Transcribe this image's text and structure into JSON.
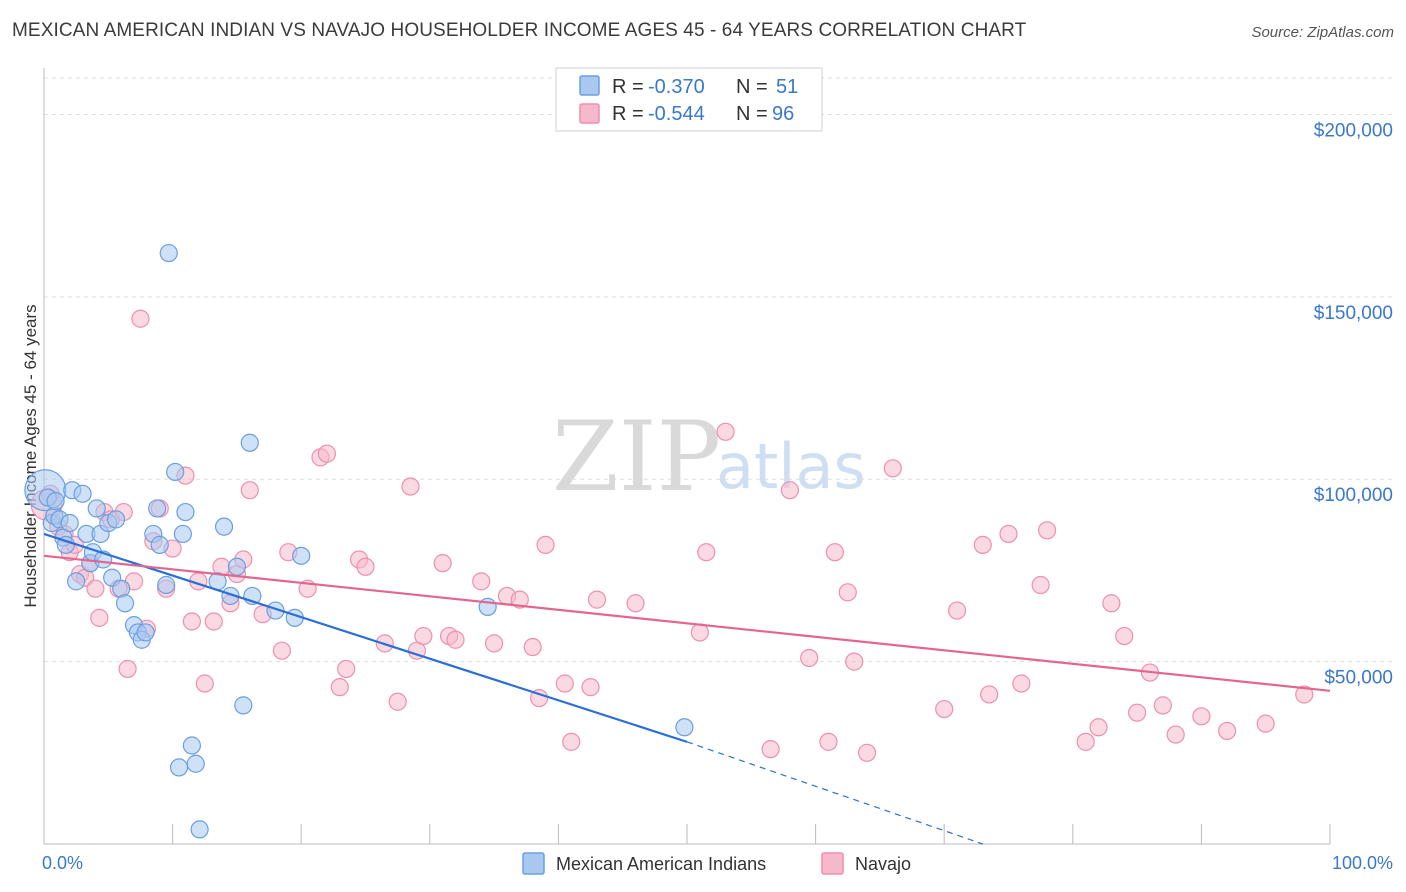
{
  "title": "MEXICAN AMERICAN INDIAN VS NAVAJO HOUSEHOLDER INCOME AGES 45 - 64 YEARS CORRELATION CHART",
  "source": "Source: ZipAtlas.com",
  "watermark": {
    "zip": "ZIP",
    "atlas": "atlas"
  },
  "colors": {
    "blue_fill": "#a8c8f0",
    "blue_stroke": "#6a9fe0",
    "blue_line": "#2b6fd6",
    "pink_fill": "#f6b9cc",
    "pink_stroke": "#ee8fae",
    "pink_line": "#e2668f",
    "axis_text": "#3a78c9",
    "grid": "#dddddd"
  },
  "legend": {
    "rows": [
      {
        "r_label": "R = ",
        "r_value": "-0.370",
        "n_label": "N = ",
        "n_value": "51"
      },
      {
        "r_label": "R = ",
        "r_value": "-0.544",
        "n_label": "N = ",
        "n_value": "96"
      }
    ]
  },
  "chart_data": {
    "type": "scatter",
    "title": "MEXICAN AMERICAN INDIAN VS NAVAJO HOUSEHOLDER INCOME AGES 45 - 64 YEARS CORRELATION CHART",
    "xlabel": "",
    "ylabel": "Householder Income Ages 45 - 64 years",
    "xlim": [
      0,
      100
    ],
    "ylim": [
      0,
      210000
    ],
    "x_tick_labels": [
      "0.0%",
      "100.0%"
    ],
    "y_ticks": [
      50000,
      100000,
      150000,
      200000
    ],
    "y_tick_labels": [
      "$50,000",
      "$100,000",
      "$150,000",
      "$200,000"
    ],
    "series": [
      {
        "name": "Mexican American Indians",
        "color": "blue",
        "r": -0.37,
        "n": 51,
        "trend": {
          "x0": 0,
          "y0": 85000,
          "x1": 50,
          "y1": 28000,
          "dash_x1": 73,
          "dash_y1": 0
        },
        "points": [
          [
            0.1,
            97000,
            2.4
          ],
          [
            0.3,
            95000,
            1.0
          ],
          [
            0.6,
            88000,
            1.0
          ],
          [
            0.8,
            90000,
            1.0
          ],
          [
            1.2,
            89000,
            1.0
          ],
          [
            1.5,
            84000,
            1.0
          ],
          [
            2.0,
            88000,
            1.0
          ],
          [
            2.2,
            97000,
            1.0
          ],
          [
            2.5,
            72000,
            1.0
          ],
          [
            3.0,
            96000,
            1.0
          ],
          [
            3.3,
            85000,
            1.0
          ],
          [
            3.6,
            77000,
            1.0
          ],
          [
            3.8,
            80000,
            1.0
          ],
          [
            4.1,
            92000,
            1.0
          ],
          [
            4.4,
            85000,
            1.0
          ],
          [
            4.6,
            78000,
            1.0
          ],
          [
            5.0,
            88000,
            1.0
          ],
          [
            5.3,
            73000,
            1.0
          ],
          [
            5.6,
            89000,
            1.0
          ],
          [
            6.0,
            70000,
            1.0
          ],
          [
            6.3,
            66000,
            1.0
          ],
          [
            7.0,
            60000,
            1.0
          ],
          [
            7.3,
            58000,
            1.0
          ],
          [
            7.6,
            56000,
            1.0
          ],
          [
            7.9,
            58000,
            1.0
          ],
          [
            8.5,
            85000,
            1.0
          ],
          [
            9.0,
            82000,
            1.0
          ],
          [
            8.8,
            92000,
            1.0
          ],
          [
            9.5,
            71000,
            1.0
          ],
          [
            9.7,
            162000,
            1.0
          ],
          [
            10.2,
            102000,
            1.0
          ],
          [
            10.8,
            85000,
            1.0
          ],
          [
            11.0,
            91000,
            1.0
          ],
          [
            10.5,
            21000,
            1.0
          ],
          [
            11.5,
            27000,
            1.0
          ],
          [
            11.8,
            22000,
            1.0
          ],
          [
            12.1,
            4000,
            1.0
          ],
          [
            13.5,
            72000,
            1.0
          ],
          [
            14.0,
            87000,
            1.0
          ],
          [
            14.5,
            68000,
            1.0
          ],
          [
            15.0,
            76000,
            1.0
          ],
          [
            15.5,
            38000,
            1.0
          ],
          [
            16.0,
            110000,
            1.0
          ],
          [
            16.2,
            68000,
            1.0
          ],
          [
            18.0,
            64000,
            1.0
          ],
          [
            19.5,
            62000,
            1.0
          ],
          [
            20.0,
            79000,
            1.0
          ],
          [
            0.9,
            94000,
            1.0
          ],
          [
            1.7,
            82000,
            1.0
          ],
          [
            34.5,
            65000,
            1.0
          ],
          [
            49.8,
            32000,
            1.0
          ]
        ]
      },
      {
        "name": "Navajo",
        "color": "pink",
        "r": -0.544,
        "n": 96,
        "trend": {
          "x0": 0,
          "y0": 79000,
          "x1": 100,
          "y1": 42000
        },
        "points": [
          [
            0.2,
            93000,
            1.8
          ],
          [
            0.5,
            96000,
            1.0
          ],
          [
            0.8,
            90000,
            1.0
          ],
          [
            1.1,
            87000,
            1.0
          ],
          [
            1.6,
            85000,
            1.0
          ],
          [
            2.0,
            80000,
            1.0
          ],
          [
            2.4,
            82000,
            1.0
          ],
          [
            2.8,
            74000,
            1.0
          ],
          [
            3.2,
            73000,
            1.0
          ],
          [
            3.6,
            77000,
            1.0
          ],
          [
            4.0,
            70000,
            1.0
          ],
          [
            4.3,
            62000,
            1.0
          ],
          [
            4.7,
            91000,
            1.0
          ],
          [
            5.2,
            89000,
            1.0
          ],
          [
            5.8,
            70000,
            1.0
          ],
          [
            6.2,
            91000,
            1.0
          ],
          [
            6.5,
            48000,
            1.0
          ],
          [
            7.0,
            72000,
            1.0
          ],
          [
            7.5,
            144000,
            1.0
          ],
          [
            8.0,
            59000,
            1.0
          ],
          [
            8.5,
            83000,
            1.0
          ],
          [
            9.0,
            92000,
            1.0
          ],
          [
            9.5,
            70000,
            1.0
          ],
          [
            10.0,
            81000,
            1.0
          ],
          [
            11.0,
            101000,
            1.0
          ],
          [
            11.5,
            61000,
            1.0
          ],
          [
            12.0,
            72000,
            1.0
          ],
          [
            12.5,
            44000,
            1.0
          ],
          [
            13.2,
            61000,
            1.0
          ],
          [
            13.8,
            76000,
            1.0
          ],
          [
            14.5,
            66000,
            1.0
          ],
          [
            15.0,
            74000,
            1.0
          ],
          [
            15.5,
            78000,
            1.0
          ],
          [
            16.0,
            97000,
            1.0
          ],
          [
            17.0,
            63000,
            1.0
          ],
          [
            18.5,
            53000,
            1.0
          ],
          [
            19.0,
            80000,
            1.0
          ],
          [
            20.5,
            70000,
            1.0
          ],
          [
            21.5,
            106000,
            1.0
          ],
          [
            22.0,
            107000,
            1.0
          ],
          [
            23.0,
            43000,
            1.0
          ],
          [
            23.5,
            48000,
            1.0
          ],
          [
            24.5,
            78000,
            1.0
          ],
          [
            25.0,
            76000,
            1.0
          ],
          [
            26.5,
            55000,
            1.0
          ],
          [
            27.5,
            39000,
            1.0
          ],
          [
            28.5,
            98000,
            1.0
          ],
          [
            29.0,
            53000,
            1.0
          ],
          [
            29.5,
            57000,
            1.0
          ],
          [
            31.0,
            77000,
            1.0
          ],
          [
            31.5,
            57000,
            1.0
          ],
          [
            32.0,
            56000,
            1.0
          ],
          [
            34.0,
            72000,
            1.0
          ],
          [
            35.0,
            55000,
            1.0
          ],
          [
            36.0,
            68000,
            1.0
          ],
          [
            37.0,
            67000,
            1.0
          ],
          [
            38.0,
            54000,
            1.0
          ],
          [
            38.5,
            40000,
            1.0
          ],
          [
            39.0,
            82000,
            1.0
          ],
          [
            40.5,
            44000,
            1.0
          ],
          [
            41.0,
            28000,
            1.0
          ],
          [
            42.5,
            43000,
            1.0
          ],
          [
            43.0,
            67000,
            1.0
          ],
          [
            46.0,
            66000,
            1.0
          ],
          [
            51.0,
            58000,
            1.0
          ],
          [
            51.5,
            80000,
            1.0
          ],
          [
            53.0,
            113000,
            1.0
          ],
          [
            56.5,
            26000,
            1.0
          ],
          [
            58.0,
            97000,
            1.0
          ],
          [
            59.5,
            51000,
            1.0
          ],
          [
            61.0,
            28000,
            1.0
          ],
          [
            61.5,
            80000,
            1.0
          ],
          [
            62.5,
            69000,
            1.0
          ],
          [
            63.0,
            50000,
            1.0
          ],
          [
            64.0,
            25000,
            1.0
          ],
          [
            66.0,
            103000,
            1.0
          ],
          [
            70.0,
            37000,
            1.0
          ],
          [
            71.0,
            64000,
            1.0
          ],
          [
            73.0,
            82000,
            1.0
          ],
          [
            73.5,
            41000,
            1.0
          ],
          [
            75.0,
            85000,
            1.0
          ],
          [
            76.0,
            44000,
            1.0
          ],
          [
            77.5,
            71000,
            1.0
          ],
          [
            78.0,
            86000,
            1.0
          ],
          [
            81.0,
            28000,
            1.0
          ],
          [
            82.0,
            32000,
            1.0
          ],
          [
            83.0,
            66000,
            1.0
          ],
          [
            84.0,
            57000,
            1.0
          ],
          [
            85.0,
            36000,
            1.0
          ],
          [
            86.0,
            47000,
            1.0
          ],
          [
            87.0,
            38000,
            1.0
          ],
          [
            88.0,
            30000,
            1.0
          ],
          [
            90.0,
            35000,
            1.0
          ],
          [
            92.0,
            31000,
            1.0
          ],
          [
            95.0,
            33000,
            1.0
          ],
          [
            98.0,
            41000,
            1.0
          ]
        ]
      }
    ]
  }
}
